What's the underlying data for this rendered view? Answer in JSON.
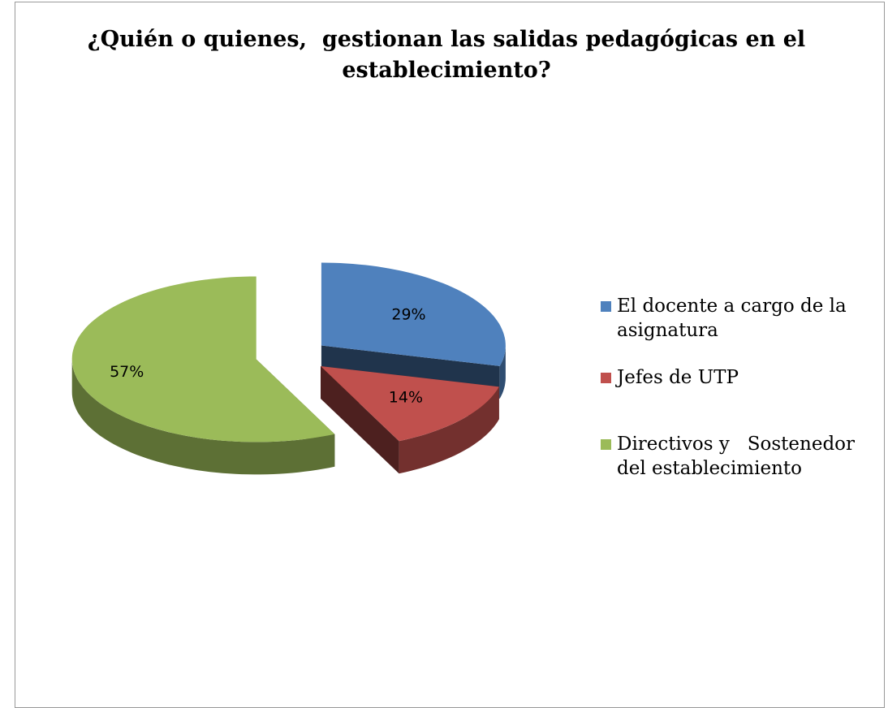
{
  "chart_data": {
    "type": "pie",
    "title": "¿Quién o quienes,  gestionan las salidas pedagógicas en el establecimiento?",
    "categories": [
      "El docente a cargo de la asignatura",
      "Jefes de UTP",
      "Directivos y   Sostenedor del establecimiento"
    ],
    "values": [
      29,
      14,
      57
    ],
    "value_labels": [
      "29%",
      "14%",
      "57%"
    ],
    "colors": [
      "#4f81bd",
      "#c0504d",
      "#9bbb59"
    ],
    "legend": "right"
  }
}
